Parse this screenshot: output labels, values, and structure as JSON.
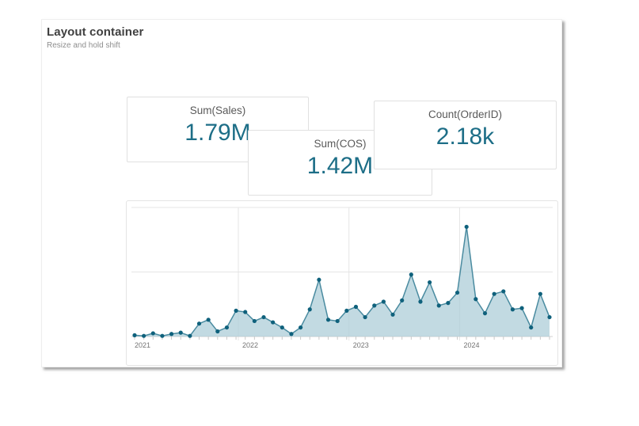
{
  "page": {
    "title": "Layout container",
    "subtitle": "Resize and hold shift"
  },
  "kpis": [
    {
      "label": "Sum(Sales)",
      "value": "1.79M"
    },
    {
      "label": "Sum(COS)",
      "value": "1.42M"
    },
    {
      "label": "Count(OrderID)",
      "value": "2.18k"
    }
  ],
  "colors": {
    "kpi_value": "#1d6e87",
    "kpi_label": "#595959",
    "line": "#4a8ba0",
    "area_fill": "#aecdd8",
    "point": "#0f617c",
    "gridline": "#e5e5e5",
    "axis": "#d2d2d2",
    "tick": "#c9c9c9",
    "axis_label": "#737373"
  },
  "chart_data": {
    "type": "area",
    "title": "",
    "xlabel": "",
    "ylabel": "",
    "legend": "none",
    "grid": {
      "h_lines_values": [
        50,
        100
      ],
      "v_lines_at": [
        "2022-01",
        "2023-01",
        "2024-01"
      ]
    },
    "ylim": [
      0,
      100
    ],
    "x_tick_labels": [
      "2021",
      "2022",
      "2023",
      "2024"
    ],
    "categories": [
      "2021-01",
      "2021-02",
      "2021-03",
      "2021-04",
      "2021-05",
      "2021-06",
      "2021-07",
      "2021-08",
      "2021-09",
      "2021-10",
      "2021-11",
      "2021-12",
      "2022-01",
      "2022-02",
      "2022-03",
      "2022-04",
      "2022-05",
      "2022-06",
      "2022-07",
      "2022-08",
      "2022-09",
      "2022-10",
      "2022-11",
      "2022-12",
      "2023-01",
      "2023-02",
      "2023-03",
      "2023-04",
      "2023-05",
      "2023-06",
      "2023-07",
      "2023-08",
      "2023-09",
      "2023-10",
      "2023-11",
      "2023-12",
      "2024-01",
      "2024-02",
      "2024-03",
      "2024-04",
      "2024-05",
      "2024-06",
      "2024-07",
      "2024-08",
      "2024-09",
      "2024-10"
    ],
    "values": [
      1,
      0.5,
      2.5,
      0.5,
      2,
      3,
      0.5,
      10,
      13,
      4,
      7,
      20,
      19,
      12,
      15,
      11,
      7,
      2,
      7,
      21,
      44,
      13,
      12,
      20,
      23,
      15,
      24,
      27,
      17,
      28,
      48,
      27,
      42,
      24,
      26,
      34,
      85,
      29,
      18,
      33,
      35,
      21,
      22,
      7,
      33,
      15
    ]
  }
}
